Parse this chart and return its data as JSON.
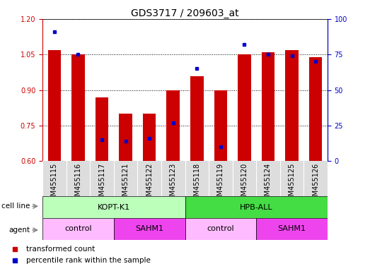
{
  "title": "GDS3717 / 209603_at",
  "samples": [
    "GSM455115",
    "GSM455116",
    "GSM455117",
    "GSM455121",
    "GSM455122",
    "GSM455123",
    "GSM455118",
    "GSM455119",
    "GSM455120",
    "GSM455124",
    "GSM455125",
    "GSM455126"
  ],
  "transformed_count": [
    1.07,
    1.05,
    0.87,
    0.8,
    0.8,
    0.9,
    0.96,
    0.9,
    1.05,
    1.06,
    1.07,
    1.04
  ],
  "percentile_rank": [
    91,
    75,
    15,
    14,
    16,
    27,
    65,
    10,
    82,
    75,
    74,
    70
  ],
  "bar_color": "#cc0000",
  "dot_color": "#0000cc",
  "ylim_left": [
    0.6,
    1.2
  ],
  "ylim_right": [
    0,
    100
  ],
  "yticks_left": [
    0.6,
    0.75,
    0.9,
    1.05,
    1.2
  ],
  "yticks_right": [
    0,
    25,
    50,
    75,
    100
  ],
  "cell_line_groups": [
    {
      "label": "KOPT-K1",
      "start": 0,
      "end": 6,
      "color": "#bbffbb"
    },
    {
      "label": "HPB-ALL",
      "start": 6,
      "end": 12,
      "color": "#44dd44"
    }
  ],
  "agent_groups": [
    {
      "label": "control",
      "start": 0,
      "end": 3,
      "color": "#ffbbff"
    },
    {
      "label": "SAHM1",
      "start": 3,
      "end": 6,
      "color": "#ee44ee"
    },
    {
      "label": "control",
      "start": 6,
      "end": 9,
      "color": "#ffbbff"
    },
    {
      "label": "SAHM1",
      "start": 9,
      "end": 12,
      "color": "#ee44ee"
    }
  ],
  "legend_red_label": "transformed count",
  "legend_blue_label": "percentile rank within the sample",
  "cell_line_label": "cell line",
  "agent_label": "agent",
  "bar_width": 0.55,
  "tick_label_fontsize": 7,
  "title_fontsize": 10,
  "annotation_fontsize": 7.5,
  "group_label_fontsize": 8
}
